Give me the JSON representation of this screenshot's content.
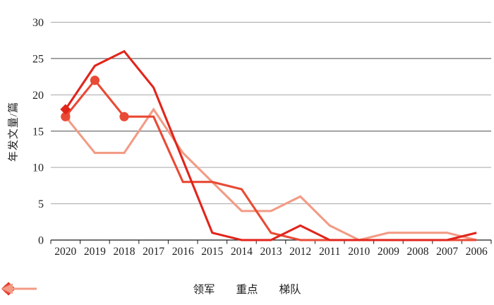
{
  "chart_data": {
    "type": "line",
    "title": "",
    "xlabel": "",
    "ylabel": "年发文量/篇",
    "ylim": [
      0,
      30
    ],
    "yticks": [
      0,
      5,
      10,
      15,
      20,
      25,
      30
    ],
    "grid": "horizontal",
    "legend_position": "bottom",
    "categories": [
      "2020",
      "2019",
      "2018",
      "2017",
      "2016",
      "2015",
      "2014",
      "2013",
      "2012",
      "2011",
      "2010",
      "2009",
      "2008",
      "2007",
      "2006"
    ],
    "series": [
      {
        "key": "lingjun",
        "name": "领军",
        "color": "#e1251b",
        "marker": "diamond",
        "marker_points": [
          0
        ],
        "values": [
          18,
          24,
          26,
          21,
          11,
          1,
          0,
          0,
          2,
          0,
          0,
          0,
          0,
          0,
          1
        ]
      },
      {
        "key": "zhongdian",
        "name": "重点",
        "color": "#e94a35",
        "marker": "circle",
        "marker_points": [
          0,
          1,
          2
        ],
        "values": [
          17,
          22,
          17,
          17,
          8,
          8,
          7,
          1,
          0,
          0,
          0,
          0,
          0,
          0,
          0
        ]
      },
      {
        "key": "tidui",
        "name": "梯队",
        "color": "#f29b85",
        "marker": "triangle-left",
        "marker_points": [
          0
        ],
        "values": [
          17,
          12,
          12,
          18,
          12,
          8,
          4,
          4,
          6,
          2,
          0,
          1,
          1,
          1,
          0
        ]
      }
    ]
  }
}
